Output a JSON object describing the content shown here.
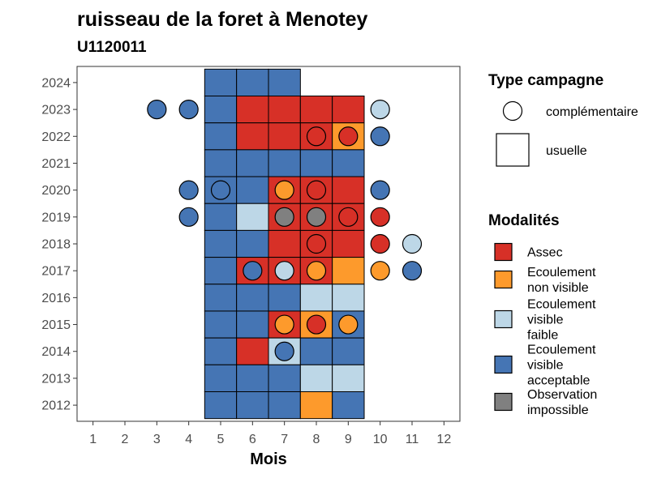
{
  "chart_data": {
    "type": "heatmap",
    "title": "ruisseau de la foret à Menotey",
    "subtitle": "U1120011",
    "xlabel": "Mois",
    "ylabel": "",
    "x_ticks": [
      1,
      2,
      3,
      4,
      5,
      6,
      7,
      8,
      9,
      10,
      11,
      12
    ],
    "y_ticks": [
      2012,
      2013,
      2014,
      2015,
      2016,
      2017,
      2018,
      2019,
      2020,
      2021,
      2022,
      2023,
      2024
    ],
    "xlim": [
      0.5,
      12.5
    ],
    "ylim": [
      2011.4,
      2024.6
    ],
    "grid": false,
    "colors": {
      "Assec": "#d73027",
      "Ecoulement non visible": "#fd9a2c",
      "Ecoulement visible faible": "#bdd7e7",
      "Ecoulement visible acceptable": "#4575b4",
      "Observation impossible": "#808080"
    },
    "legend": {
      "placement": "right",
      "type_title": "Type campagne",
      "type_entries": [
        {
          "key": "complementaire",
          "label": "complémentaire",
          "shape": "circle"
        },
        {
          "key": "usuelle",
          "label": "usuelle",
          "shape": "square"
        }
      ],
      "modalites_title": "Modalités",
      "modalites_entries": [
        {
          "key": "Assec",
          "lines": [
            "Assec"
          ]
        },
        {
          "key": "Ecoulement non visible",
          "lines": [
            "Ecoulement",
            "non visible"
          ]
        },
        {
          "key": "Ecoulement visible faible",
          "lines": [
            "Ecoulement",
            "visible",
            "faible"
          ]
        },
        {
          "key": "Ecoulement visible acceptable",
          "lines": [
            "Ecoulement",
            "visible",
            "acceptable"
          ]
        },
        {
          "key": "Observation impossible",
          "lines": [
            "Observation",
            "impossible"
          ]
        }
      ]
    },
    "usuelle": [
      {
        "year": 2024,
        "month": 5,
        "modalite": "Ecoulement visible acceptable"
      },
      {
        "year": 2024,
        "month": 6,
        "modalite": "Ecoulement visible acceptable"
      },
      {
        "year": 2024,
        "month": 7,
        "modalite": "Ecoulement visible acceptable"
      },
      {
        "year": 2023,
        "month": 5,
        "modalite": "Ecoulement visible acceptable"
      },
      {
        "year": 2023,
        "month": 6,
        "modalite": "Assec"
      },
      {
        "year": 2023,
        "month": 7,
        "modalite": "Assec"
      },
      {
        "year": 2023,
        "month": 8,
        "modalite": "Assec"
      },
      {
        "year": 2023,
        "month": 9,
        "modalite": "Assec"
      },
      {
        "year": 2022,
        "month": 5,
        "modalite": "Ecoulement visible acceptable"
      },
      {
        "year": 2022,
        "month": 6,
        "modalite": "Assec"
      },
      {
        "year": 2022,
        "month": 7,
        "modalite": "Assec"
      },
      {
        "year": 2022,
        "month": 8,
        "modalite": "Assec"
      },
      {
        "year": 2022,
        "month": 9,
        "modalite": "Ecoulement non visible"
      },
      {
        "year": 2021,
        "month": 5,
        "modalite": "Ecoulement visible acceptable"
      },
      {
        "year": 2021,
        "month": 6,
        "modalite": "Ecoulement visible acceptable"
      },
      {
        "year": 2021,
        "month": 7,
        "modalite": "Ecoulement visible acceptable"
      },
      {
        "year": 2021,
        "month": 8,
        "modalite": "Ecoulement visible acceptable"
      },
      {
        "year": 2021,
        "month": 9,
        "modalite": "Ecoulement visible acceptable"
      },
      {
        "year": 2020,
        "month": 5,
        "modalite": "Ecoulement visible acceptable"
      },
      {
        "year": 2020,
        "month": 6,
        "modalite": "Ecoulement visible acceptable"
      },
      {
        "year": 2020,
        "month": 7,
        "modalite": "Assec"
      },
      {
        "year": 2020,
        "month": 8,
        "modalite": "Assec"
      },
      {
        "year": 2020,
        "month": 9,
        "modalite": "Assec"
      },
      {
        "year": 2019,
        "month": 5,
        "modalite": "Ecoulement visible acceptable"
      },
      {
        "year": 2019,
        "month": 6,
        "modalite": "Ecoulement visible faible"
      },
      {
        "year": 2019,
        "month": 7,
        "modalite": "Assec"
      },
      {
        "year": 2019,
        "month": 8,
        "modalite": "Assec"
      },
      {
        "year": 2019,
        "month": 9,
        "modalite": "Assec"
      },
      {
        "year": 2018,
        "month": 5,
        "modalite": "Ecoulement visible acceptable"
      },
      {
        "year": 2018,
        "month": 6,
        "modalite": "Ecoulement visible acceptable"
      },
      {
        "year": 2018,
        "month": 7,
        "modalite": "Assec"
      },
      {
        "year": 2018,
        "month": 8,
        "modalite": "Assec"
      },
      {
        "year": 2018,
        "month": 9,
        "modalite": "Assec"
      },
      {
        "year": 2017,
        "month": 5,
        "modalite": "Ecoulement visible acceptable"
      },
      {
        "year": 2017,
        "month": 6,
        "modalite": "Assec"
      },
      {
        "year": 2017,
        "month": 7,
        "modalite": "Assec"
      },
      {
        "year": 2017,
        "month": 8,
        "modalite": "Assec"
      },
      {
        "year": 2017,
        "month": 9,
        "modalite": "Ecoulement non visible"
      },
      {
        "year": 2016,
        "month": 5,
        "modalite": "Ecoulement visible acceptable"
      },
      {
        "year": 2016,
        "month": 6,
        "modalite": "Ecoulement visible acceptable"
      },
      {
        "year": 2016,
        "month": 7,
        "modalite": "Ecoulement visible acceptable"
      },
      {
        "year": 2016,
        "month": 8,
        "modalite": "Ecoulement visible faible"
      },
      {
        "year": 2016,
        "month": 9,
        "modalite": "Ecoulement visible faible"
      },
      {
        "year": 2015,
        "month": 5,
        "modalite": "Ecoulement visible acceptable"
      },
      {
        "year": 2015,
        "month": 6,
        "modalite": "Ecoulement visible acceptable"
      },
      {
        "year": 2015,
        "month": 7,
        "modalite": "Assec"
      },
      {
        "year": 2015,
        "month": 8,
        "modalite": "Ecoulement non visible"
      },
      {
        "year": 2015,
        "month": 9,
        "modalite": "Ecoulement visible acceptable"
      },
      {
        "year": 2014,
        "month": 5,
        "modalite": "Ecoulement visible acceptable"
      },
      {
        "year": 2014,
        "month": 6,
        "modalite": "Assec"
      },
      {
        "year": 2014,
        "month": 7,
        "modalite": "Ecoulement visible faible"
      },
      {
        "year": 2014,
        "month": 8,
        "modalite": "Ecoulement visible acceptable"
      },
      {
        "year": 2014,
        "month": 9,
        "modalite": "Ecoulement visible acceptable"
      },
      {
        "year": 2013,
        "month": 5,
        "modalite": "Ecoulement visible acceptable"
      },
      {
        "year": 2013,
        "month": 6,
        "modalite": "Ecoulement visible acceptable"
      },
      {
        "year": 2013,
        "month": 7,
        "modalite": "Ecoulement visible acceptable"
      },
      {
        "year": 2013,
        "month": 8,
        "modalite": "Ecoulement visible faible"
      },
      {
        "year": 2013,
        "month": 9,
        "modalite": "Ecoulement visible faible"
      },
      {
        "year": 2012,
        "month": 5,
        "modalite": "Ecoulement visible acceptable"
      },
      {
        "year": 2012,
        "month": 6,
        "modalite": "Ecoulement visible acceptable"
      },
      {
        "year": 2012,
        "month": 7,
        "modalite": "Ecoulement visible acceptable"
      },
      {
        "year": 2012,
        "month": 8,
        "modalite": "Ecoulement non visible"
      },
      {
        "year": 2012,
        "month": 9,
        "modalite": "Ecoulement visible acceptable"
      }
    ],
    "complementaire": [
      {
        "year": 2023,
        "month": 3,
        "modalite": "Ecoulement visible acceptable"
      },
      {
        "year": 2023,
        "month": 4,
        "modalite": "Ecoulement visible acceptable"
      },
      {
        "year": 2023,
        "month": 10,
        "modalite": "Ecoulement visible faible"
      },
      {
        "year": 2022,
        "month": 8,
        "modalite": "Assec"
      },
      {
        "year": 2022,
        "month": 9,
        "modalite": "Assec"
      },
      {
        "year": 2022,
        "month": 10,
        "modalite": "Ecoulement visible acceptable"
      },
      {
        "year": 2020,
        "month": 4,
        "modalite": "Ecoulement visible acceptable"
      },
      {
        "year": 2020,
        "month": 5,
        "modalite": "Ecoulement visible acceptable"
      },
      {
        "year": 2020,
        "month": 7,
        "modalite": "Ecoulement non visible"
      },
      {
        "year": 2020,
        "month": 8,
        "modalite": "Assec"
      },
      {
        "year": 2020,
        "month": 10,
        "modalite": "Ecoulement visible acceptable"
      },
      {
        "year": 2019,
        "month": 4,
        "modalite": "Ecoulement visible acceptable"
      },
      {
        "year": 2019,
        "month": 7,
        "modalite": "Observation impossible"
      },
      {
        "year": 2019,
        "month": 8,
        "modalite": "Observation impossible"
      },
      {
        "year": 2019,
        "month": 9,
        "modalite": "Assec"
      },
      {
        "year": 2019,
        "month": 10,
        "modalite": "Assec"
      },
      {
        "year": 2018,
        "month": 8,
        "modalite": "Assec"
      },
      {
        "year": 2018,
        "month": 10,
        "modalite": "Assec"
      },
      {
        "year": 2018,
        "month": 11,
        "modalite": "Ecoulement visible faible"
      },
      {
        "year": 2017,
        "month": 6,
        "modalite": "Ecoulement visible acceptable"
      },
      {
        "year": 2017,
        "month": 7,
        "modalite": "Ecoulement visible faible"
      },
      {
        "year": 2017,
        "month": 8,
        "modalite": "Ecoulement non visible"
      },
      {
        "year": 2017,
        "month": 10,
        "modalite": "Ecoulement non visible"
      },
      {
        "year": 2017,
        "month": 11,
        "modalite": "Ecoulement visible acceptable"
      },
      {
        "year": 2015,
        "month": 7,
        "modalite": "Ecoulement non visible"
      },
      {
        "year": 2015,
        "month": 8,
        "modalite": "Assec"
      },
      {
        "year": 2015,
        "month": 9,
        "modalite": "Ecoulement non visible"
      },
      {
        "year": 2014,
        "month": 7,
        "modalite": "Ecoulement visible acceptable"
      }
    ]
  }
}
